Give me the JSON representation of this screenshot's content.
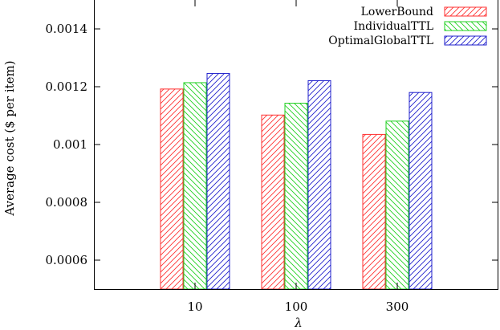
{
  "chart_data": {
    "type": "bar",
    "categories": [
      "10",
      "100",
      "300"
    ],
    "series": [
      {
        "name": "LowerBound",
        "values": [
          0.001192,
          0.001102,
          0.001035
        ],
        "color": "#ff3030",
        "hatch": "forward"
      },
      {
        "name": "IndividualTTL",
        "values": [
          0.001214,
          0.001143,
          0.001081
        ],
        "color": "#20d020",
        "hatch": "backward"
      },
      {
        "name": "OptimalGlobalTTL",
        "values": [
          0.001246,
          0.001221,
          0.00118
        ],
        "color": "#2020cc",
        "hatch": "forward"
      }
    ],
    "xlabel": "λ",
    "ylabel": "Average cost ($ per item)",
    "ylim": [
      0.0005,
      0.0015
    ],
    "yticks": [
      {
        "value": 0.0006,
        "label": "0.0006"
      },
      {
        "value": 0.0008,
        "label": "0.0008"
      },
      {
        "value": 0.001,
        "label": "0.001"
      },
      {
        "value": 0.0012,
        "label": "0.0012"
      },
      {
        "value": 0.0014,
        "label": "0.0014"
      }
    ],
    "grid": false,
    "legend": "top-right"
  }
}
